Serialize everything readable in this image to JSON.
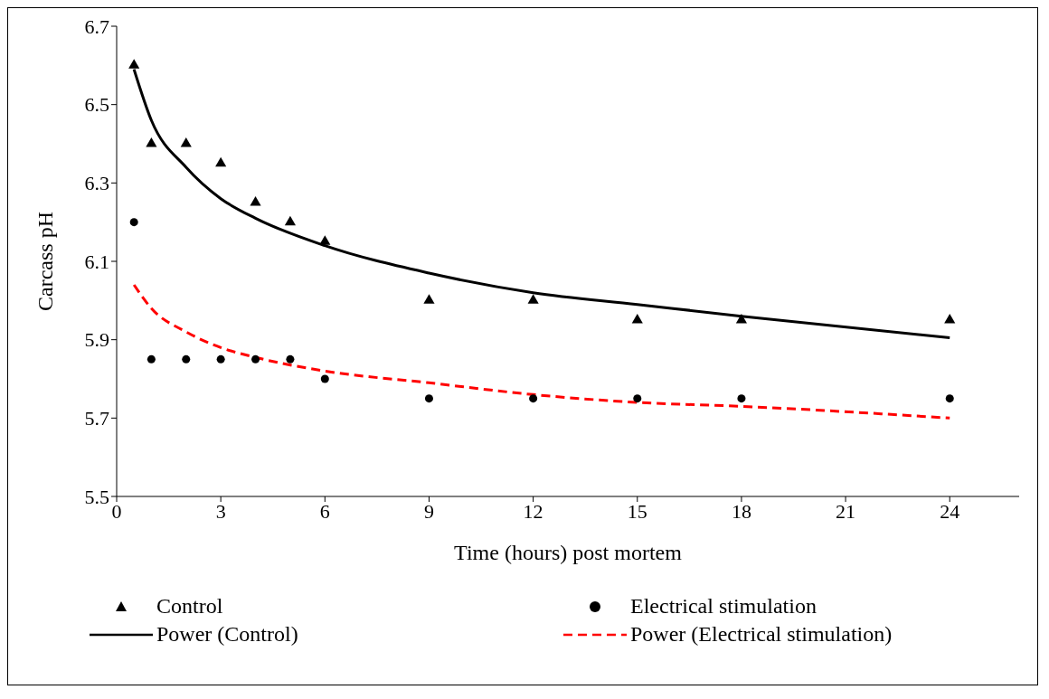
{
  "chart_data": {
    "type": "scatter",
    "xlabel": "Time (hours) post mortem",
    "ylabel": "Carcass pH",
    "xlim": [
      0,
      26
    ],
    "xticks": [
      0,
      3,
      6,
      9,
      12,
      15,
      18,
      21,
      24
    ],
    "ylim": [
      5.5,
      6.7
    ],
    "yticks": [
      5.5,
      5.7,
      5.9,
      6.1,
      6.3,
      6.5,
      6.7
    ],
    "grid": false,
    "legend": "bottom",
    "series": [
      {
        "name": "Control",
        "marker": "triangle",
        "color": "#000000",
        "x": [
          0.5,
          1,
          2,
          3,
          4,
          5,
          6,
          9,
          12,
          15,
          18,
          24
        ],
        "values": [
          6.6,
          6.4,
          6.4,
          6.35,
          6.25,
          6.2,
          6.15,
          6.0,
          6.0,
          5.95,
          5.95,
          5.95
        ]
      },
      {
        "name": "Electrical stimulation",
        "marker": "circle",
        "color": "#000000",
        "x": [
          0.5,
          1,
          2,
          3,
          4,
          5,
          6,
          9,
          12,
          15,
          18,
          24
        ],
        "values": [
          6.2,
          5.85,
          5.85,
          5.85,
          5.85,
          5.85,
          5.8,
          5.75,
          5.75,
          5.75,
          5.75,
          5.75
        ]
      },
      {
        "name": "Power (Control)",
        "type": "line",
        "line_style": "solid",
        "color": "#000000",
        "x": [
          0.5,
          1,
          2,
          3,
          4,
          6,
          9,
          12,
          15,
          18,
          24
        ],
        "values": [
          6.59,
          6.46,
          6.34,
          6.26,
          6.21,
          6.14,
          6.07,
          6.02,
          5.99,
          5.96,
          5.905
        ]
      },
      {
        "name": "Power (Electrical stimulation)",
        "type": "line",
        "line_style": "dashed",
        "color": "#ff0000",
        "x": [
          0.5,
          1,
          2,
          3,
          4,
          6,
          9,
          12,
          15,
          18,
          24
        ],
        "values": [
          6.04,
          5.98,
          5.92,
          5.88,
          5.855,
          5.82,
          5.79,
          5.76,
          5.74,
          5.73,
          5.7
        ]
      }
    ]
  }
}
